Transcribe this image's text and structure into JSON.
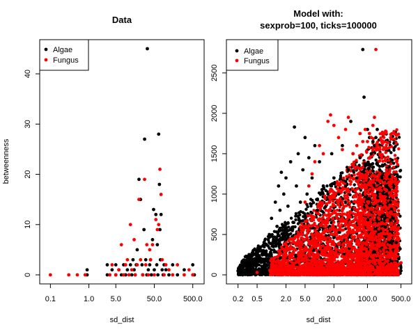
{
  "chart_data": [
    {
      "type": "scatter",
      "title": "Data",
      "xlabel": "sd_dist",
      "ylabel": "betweenness",
      "x_scale": "log",
      "xlim": [
        0.08,
        650
      ],
      "ylim": [
        0,
        45
      ],
      "xticks": [
        0.1,
        1.0,
        5.0,
        50.0,
        500.0
      ],
      "xtick_labels": [
        "0.1",
        "1.0",
        "5.0",
        "50.0",
        "500.0"
      ],
      "yticks": [
        0,
        10,
        20,
        30,
        40
      ],
      "ytick_labels": [
        "0",
        "10",
        "20",
        "30",
        "40"
      ],
      "legend": {
        "position": "top-left",
        "entries": [
          {
            "label": "Algae",
            "color": "#000000"
          },
          {
            "label": "Fungus",
            "color": "#ff0000"
          }
        ]
      },
      "series": [
        {
          "name": "Algae",
          "color": "#000000",
          "points": [
            [
              0.9,
              0
            ],
            [
              0.9,
              1
            ],
            [
              3,
              0
            ],
            [
              3,
              2
            ],
            [
              4,
              1
            ],
            [
              5,
              0
            ],
            [
              5,
              2
            ],
            [
              6,
              1
            ],
            [
              7,
              0
            ],
            [
              8,
              2
            ],
            [
              9,
              0
            ],
            [
              10,
              1
            ],
            [
              12,
              2
            ],
            [
              13,
              0
            ],
            [
              14,
              3
            ],
            [
              15,
              1
            ],
            [
              16,
              0
            ],
            [
              17,
              2
            ],
            [
              18,
              5
            ],
            [
              20,
              19
            ],
            [
              22,
              15
            ],
            [
              24,
              2
            ],
            [
              25,
              0
            ],
            [
              27,
              9
            ],
            [
              28,
              27
            ],
            [
              30,
              3
            ],
            [
              32,
              0
            ],
            [
              33,
              45
            ],
            [
              35,
              1
            ],
            [
              38,
              2
            ],
            [
              40,
              3
            ],
            [
              42,
              0
            ],
            [
              45,
              7
            ],
            [
              48,
              13
            ],
            [
              50,
              1
            ],
            [
              55,
              12
            ],
            [
              58,
              2
            ],
            [
              60,
              6
            ],
            [
              62,
              0
            ],
            [
              65,
              28
            ],
            [
              68,
              18
            ],
            [
              70,
              9
            ],
            [
              72,
              3
            ],
            [
              75,
              12
            ],
            [
              80,
              1
            ],
            [
              85,
              0
            ],
            [
              90,
              2
            ],
            [
              100,
              1
            ],
            [
              120,
              0
            ],
            [
              150,
              2
            ],
            [
              200,
              0
            ],
            [
              300,
              1
            ],
            [
              500,
              2
            ],
            [
              550,
              0
            ]
          ]
        },
        {
          "name": "Fungus",
          "color": "#ff0000",
          "points": [
            [
              0.1,
              0
            ],
            [
              0.3,
              0
            ],
            [
              0.5,
              0
            ],
            [
              0.8,
              0
            ],
            [
              3.5,
              0
            ],
            [
              4,
              2
            ],
            [
              5,
              0
            ],
            [
              6,
              1
            ],
            [
              7,
              6
            ],
            [
              8,
              0
            ],
            [
              9,
              2
            ],
            [
              10,
              3
            ],
            [
              11,
              0
            ],
            [
              12,
              10
            ],
            [
              13,
              1
            ],
            [
              15,
              7
            ],
            [
              16,
              0
            ],
            [
              18,
              2
            ],
            [
              20,
              15
            ],
            [
              22,
              3
            ],
            [
              25,
              0
            ],
            [
              28,
              19
            ],
            [
              30,
              2
            ],
            [
              32,
              6
            ],
            [
              35,
              0
            ],
            [
              38,
              5
            ],
            [
              40,
              3
            ],
            [
              45,
              6
            ],
            [
              50,
              0
            ],
            [
              55,
              11
            ],
            [
              60,
              9
            ],
            [
              65,
              10
            ],
            [
              70,
              21
            ],
            [
              75,
              16
            ],
            [
              80,
              3
            ],
            [
              90,
              0
            ],
            [
              100,
              2
            ],
            [
              120,
              1
            ],
            [
              150,
              0
            ],
            [
              200,
              2
            ],
            [
              300,
              0
            ],
            [
              400,
              1
            ],
            [
              500,
              0
            ]
          ]
        }
      ]
    },
    {
      "type": "scatter",
      "title": "Model with:",
      "subtitle": "sexprob=100, ticks=100000",
      "xlabel": "sd_dist",
      "ylabel": "",
      "x_scale": "log",
      "xlim": [
        0.16,
        600
      ],
      "ylim": [
        0,
        2800
      ],
      "xticks": [
        0.2,
        0.5,
        2.0,
        5.0,
        20.0,
        100.0,
        500.0
      ],
      "xtick_labels": [
        "0.2",
        "0.5",
        "2.0",
        "5.0",
        "20.0",
        "100.0",
        "500.0"
      ],
      "yticks": [
        0,
        500,
        1000,
        1500,
        2000,
        2500
      ],
      "ytick_labels": [
        "0",
        "500",
        "1000",
        "1500",
        "2000",
        "2500"
      ],
      "legend": {
        "position": "top-left",
        "entries": [
          {
            "label": "Algae",
            "color": "#000000"
          },
          {
            "label": "Fungus",
            "color": "#ff0000"
          }
        ]
      },
      "series": [
        {
          "name": "Algae",
          "color": "#000000",
          "points": [
            [
              0.2,
              50
            ],
            [
              0.22,
              100
            ],
            [
              0.25,
              0
            ],
            [
              0.3,
              60
            ],
            [
              0.35,
              150
            ],
            [
              0.4,
              80
            ],
            [
              0.45,
              200
            ],
            [
              0.5,
              120
            ],
            [
              0.6,
              300
            ],
            [
              0.65,
              50
            ],
            [
              0.7,
              400
            ],
            [
              0.8,
              250
            ],
            [
              0.9,
              500
            ],
            [
              1.0,
              700
            ],
            [
              1.1,
              350
            ],
            [
              1.2,
              900
            ],
            [
              1.3,
              600
            ],
            [
              1.4,
              1100
            ],
            [
              1.5,
              800
            ],
            [
              1.6,
              1270
            ],
            [
              1.7,
              450
            ],
            [
              1.8,
              1000
            ],
            [
              2.0,
              1200
            ],
            [
              2.2,
              850
            ],
            [
              2.5,
              1400
            ],
            [
              2.8,
              650
            ],
            [
              3.0,
              1830
            ],
            [
              3.3,
              1100
            ],
            [
              3.6,
              1500
            ],
            [
              4.0,
              900
            ],
            [
              4.5,
              1300
            ],
            [
              5.0,
              1700
            ],
            [
              5.5,
              1000
            ],
            [
              6.0,
              1450
            ],
            [
              7.0,
              1200
            ],
            [
              8.0,
              1600
            ],
            [
              9.0,
              800
            ],
            [
              10,
              1400
            ],
            [
              12,
              1100
            ],
            [
              15,
              1000
            ],
            [
              18,
              1500
            ],
            [
              20,
              1200
            ],
            [
              25,
              1000
            ],
            [
              30,
              1600
            ],
            [
              35,
              1100
            ],
            [
              40,
              1300
            ],
            [
              45,
              1900
            ],
            [
              50,
              1500
            ],
            [
              60,
              1200
            ],
            [
              70,
              1450
            ],
            [
              80,
              2790
            ],
            [
              85,
              2200
            ],
            [
              90,
              1350
            ],
            [
              100,
              1800
            ],
            [
              110,
              1700
            ],
            [
              120,
              1500
            ],
            [
              130,
              1650
            ],
            [
              140,
              1600
            ],
            [
              150,
              1700
            ],
            [
              160,
              1800
            ],
            [
              180,
              1300
            ],
            [
              200,
              1200
            ],
            [
              250,
              1000
            ],
            [
              300,
              900
            ],
            [
              350,
              700
            ],
            [
              400,
              400
            ],
            [
              450,
              200
            ],
            [
              500,
              50
            ]
          ],
          "note": "dense cloud of additional points rendered procedurally"
        },
        {
          "name": "Fungus",
          "color": "#ff0000",
          "points": [
            [
              0.5,
              30
            ],
            [
              1.0,
              80
            ],
            [
              1.5,
              150
            ],
            [
              2.0,
              250
            ],
            [
              2.5,
              350
            ],
            [
              3.0,
              450
            ],
            [
              4.0,
              500
            ],
            [
              5.0,
              900
            ],
            [
              6.0,
              1100
            ],
            [
              7.0,
              1250
            ],
            [
              8.0,
              1400
            ],
            [
              10,
              1600
            ],
            [
              12,
              1500
            ],
            [
              15,
              1900
            ],
            [
              17,
              1980
            ],
            [
              20,
              1850
            ],
            [
              25,
              1700
            ],
            [
              30,
              1550
            ],
            [
              35,
              1800
            ],
            [
              40,
              1950
            ],
            [
              50,
              1500
            ],
            [
              60,
              1600
            ],
            [
              70,
              1750
            ],
            [
              80,
              1650
            ],
            [
              90,
              1800
            ],
            [
              100,
              1650
            ],
            [
              110,
              1750
            ],
            [
              120,
              1700
            ],
            [
              130,
              1850
            ],
            [
              140,
              1950
            ],
            [
              150,
              2790
            ],
            [
              160,
              1600
            ],
            [
              170,
              1550
            ],
            [
              180,
              1500
            ],
            [
              200,
              1450
            ],
            [
              250,
              1300
            ],
            [
              300,
              1150
            ],
            [
              350,
              900
            ],
            [
              400,
              700
            ],
            [
              450,
              450
            ],
            [
              500,
              150
            ]
          ],
          "note": "dense cloud of additional points rendered procedurally"
        }
      ]
    }
  ]
}
